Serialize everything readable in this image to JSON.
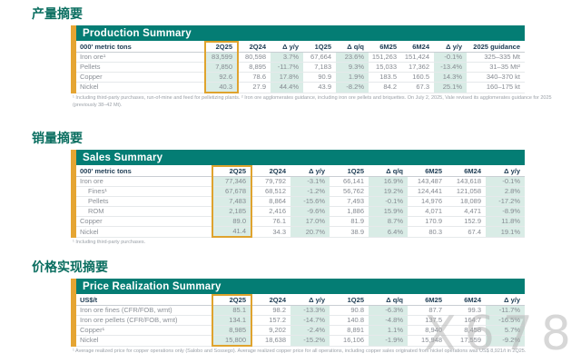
{
  "watermark": "X678",
  "colors": {
    "teal": "#047d74",
    "gold": "#e5a533",
    "mint": "#d9ece6",
    "title_green": "#0a6e60"
  },
  "sections": [
    {
      "zh_title": "产量摘要",
      "title": "Production Summary",
      "unit_label": "000' metric tons",
      "highlight_column": "2Q25",
      "columns": [
        "2Q25",
        "2Q24",
        "Δ y/y",
        "1Q25",
        "Δ q/q",
        "6M25",
        "6M24",
        "Δ y/y",
        "2025 guidance"
      ],
      "rows": [
        {
          "label": "Iron ore¹",
          "indent": false,
          "values": [
            "83,599",
            "80,598",
            "3.7%",
            "67,664",
            "23.6%",
            "151,263",
            "151,424",
            "-0.1%",
            "325–335 Mt"
          ]
        },
        {
          "label": "Pellets",
          "indent": false,
          "values": [
            "7,850",
            "8,895",
            "-11.7%",
            "7,183",
            "9.3%",
            "15,033",
            "17,362",
            "-13.4%",
            "31–35 Mt²"
          ]
        },
        {
          "label": "Copper",
          "indent": false,
          "values": [
            "92.6",
            "78.6",
            "17.8%",
            "90.9",
            "1.9%",
            "183.5",
            "160.5",
            "14.3%",
            "340–370 kt"
          ]
        },
        {
          "label": "Nickel",
          "indent": false,
          "values": [
            "40.3",
            "27.9",
            "44.4%",
            "43.9",
            "-8.2%",
            "84.2",
            "67.3",
            "25.1%",
            "160–175 kt"
          ]
        }
      ],
      "footnote": "¹ Including third-party purchases, run-of-mine and feed for pelletizing plants. ² Iron ore agglomerates guidance, including iron ore pellets and briquettes. On July 2, 2025, Vale revised its agglomerates guidance for 2025 (previously 38–42 Mt)."
    },
    {
      "zh_title": "销量摘要",
      "title": "Sales Summary",
      "unit_label": "000' metric tons",
      "highlight_column": "2Q25",
      "columns": [
        "2Q25",
        "2Q24",
        "Δ y/y",
        "1Q25",
        "Δ q/q",
        "6M25",
        "6M24",
        "Δ y/y"
      ],
      "rows": [
        {
          "label": "Iron ore",
          "indent": false,
          "values": [
            "77,346",
            "79,792",
            "-3.1%",
            "66,141",
            "16.9%",
            "143,487",
            "143,618",
            "-0.1%"
          ]
        },
        {
          "label": "Fines¹",
          "indent": true,
          "values": [
            "67,678",
            "68,512",
            "-1.2%",
            "56,762",
            "19.2%",
            "124,441",
            "121,058",
            "2.8%"
          ]
        },
        {
          "label": "Pellets",
          "indent": true,
          "values": [
            "7,483",
            "8,864",
            "-15.6%",
            "7,493",
            "-0.1%",
            "14,976",
            "18,089",
            "-17.2%"
          ]
        },
        {
          "label": "ROM",
          "indent": true,
          "values": [
            "2,185",
            "2,416",
            "-9.6%",
            "1,886",
            "15.9%",
            "4,071",
            "4,471",
            "-8.9%"
          ]
        },
        {
          "label": "Copper",
          "indent": false,
          "values": [
            "89.0",
            "76.1",
            "17.0%",
            "81.9",
            "8.7%",
            "170.9",
            "152.9",
            "11.8%"
          ]
        },
        {
          "label": "Nickel",
          "indent": false,
          "values": [
            "41.4",
            "34.3",
            "20.7%",
            "38.9",
            "6.4%",
            "80.3",
            "67.4",
            "19.1%"
          ]
        }
      ],
      "footnote": "¹ Including third-party purchases."
    },
    {
      "zh_title": "价格实现摘要",
      "title": "Price Realization Summary",
      "unit_label": "US$/t",
      "highlight_column": "2Q25",
      "columns": [
        "2Q25",
        "2Q24",
        "Δ y/y",
        "1Q25",
        "Δ q/q",
        "6M25",
        "6M24",
        "Δ y/y"
      ],
      "rows": [
        {
          "label": "Iron ore fines (CFR/FOB, wmt)",
          "indent": false,
          "values": [
            "85.1",
            "98.2",
            "-13.3%",
            "90.8",
            "-6.3%",
            "87.7",
            "99.3",
            "-11.7%"
          ]
        },
        {
          "label": "Iron ore pellets (CFR/FOB, wmt)",
          "indent": false,
          "values": [
            "134.1",
            "157.2",
            "-14.7%",
            "140.8",
            "-4.8%",
            "137.5",
            "164.7",
            "-16.5%"
          ]
        },
        {
          "label": "Copper¹",
          "indent": false,
          "values": [
            "8,985",
            "9,202",
            "-2.4%",
            "8,891",
            "1.1%",
            "8,940",
            "8,458",
            "5.7%"
          ]
        },
        {
          "label": "Nickel",
          "indent": false,
          "values": [
            "15,800",
            "18,638",
            "-15.2%",
            "16,106",
            "-1.9%",
            "15,948",
            "17,559",
            "-9.2%"
          ]
        }
      ],
      "footnote": "¹ Average realized price for copper operations only (Salobo and Sossego). Average realized copper price for all operations, including copper sales originated from nickel operations was US$ 8,921/t in 2Q25."
    }
  ]
}
